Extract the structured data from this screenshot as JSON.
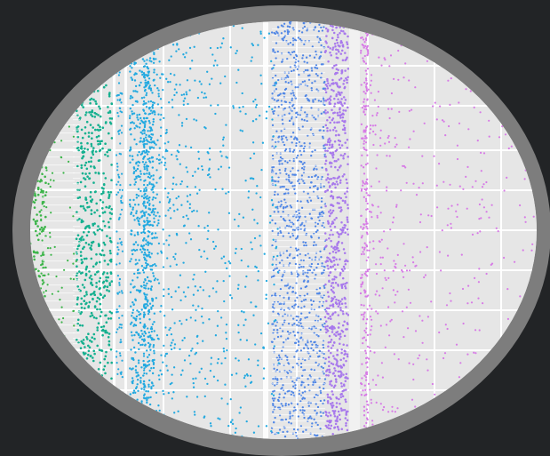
{
  "image": {
    "subject": "scatter-plot-fragment-in-oval-frame",
    "frame_color": "#7d7d7d",
    "backdrop_color": "#222426",
    "panel_color": "#e6e6e6",
    "grid_color": "#ffffff"
  },
  "bands": [
    {
      "name": "green",
      "color": "#3db54a"
    },
    {
      "name": "teal",
      "color": "#14b08f"
    },
    {
      "name": "sky",
      "color": "#22a9e0"
    },
    {
      "name": "blue",
      "color": "#4f86e6"
    },
    {
      "name": "violet",
      "color": "#a879ec"
    },
    {
      "name": "magenta",
      "color": "#d77be6"
    }
  ]
}
